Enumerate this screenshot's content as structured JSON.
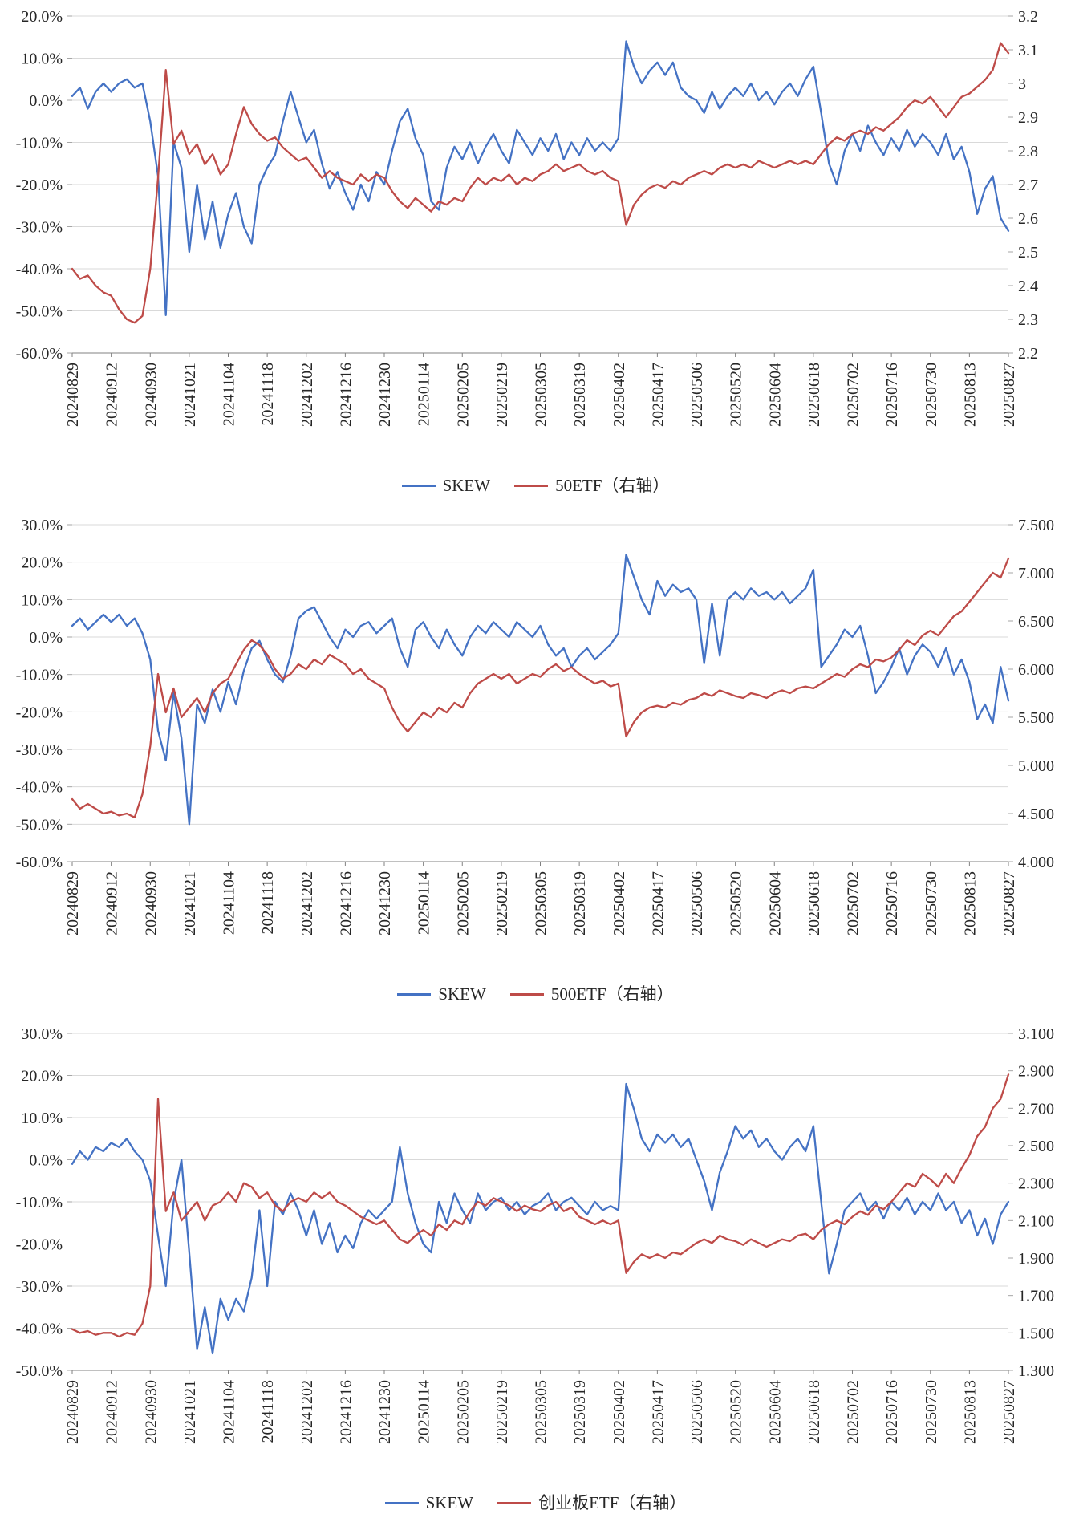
{
  "colors": {
    "skew": "#4472C4",
    "etf": "#BE4B48",
    "grid": "#D9D9D9",
    "axis": "#808080",
    "tick": "#A6A6A6",
    "text": "#262626"
  },
  "x_labels": [
    "20240829",
    "20240912",
    "20240930",
    "20241021",
    "20241104",
    "20241118",
    "20241202",
    "20241216",
    "20241230",
    "20250114",
    "20250205",
    "20250219",
    "20250305",
    "20250319",
    "20250402",
    "20250417",
    "20250506",
    "20250520",
    "20250604",
    "20250618",
    "20250702",
    "20250716",
    "20250730",
    "20250813",
    "20250827"
  ],
  "chart_data": [
    {
      "type": "line",
      "name": "skew-vs-50etf",
      "legend": [
        "SKEW",
        "50ETF（右轴）"
      ],
      "x_tick_every": 5,
      "left_axis": {
        "max": 20,
        "min": -60,
        "format": "percent",
        "labels": [
          "20.0%",
          "10.0%",
          "0.0%",
          "-10.0%",
          "-20.0%",
          "-30.0%",
          "-40.0%",
          "-50.0%",
          "-60.0%"
        ]
      },
      "right_axis": {
        "max": 3.2,
        "min": 2.2,
        "labels": [
          "3.2",
          "3.1",
          "3",
          "2.9",
          "2.8",
          "2.7",
          "2.6",
          "2.5",
          "2.4",
          "2.3",
          "2.2"
        ]
      },
      "series": [
        {
          "name": "SKEW",
          "axis": "left",
          "color_key": "skew",
          "unit": "percent",
          "values": [
            1,
            3,
            -2,
            2,
            4,
            2,
            4,
            5,
            3,
            4,
            -5,
            -18,
            -51,
            -10,
            -16,
            -36,
            -20,
            -33,
            -24,
            -35,
            -27,
            -22,
            -30,
            -34,
            -20,
            -16,
            -13,
            -5,
            2,
            -4,
            -10,
            -7,
            -15,
            -21,
            -17,
            -22,
            -26,
            -20,
            -24,
            -17,
            -20,
            -12,
            -5,
            -2,
            -9,
            -13,
            -24,
            -26,
            -16,
            -11,
            -14,
            -10,
            -15,
            -11,
            -8,
            -12,
            -15,
            -7,
            -10,
            -13,
            -9,
            -12,
            -8,
            -14,
            -10,
            -13,
            -9,
            -12,
            -10,
            -12,
            -9,
            14,
            8,
            4,
            7,
            9,
            6,
            9,
            3,
            1,
            0,
            -3,
            2,
            -2,
            1,
            3,
            1,
            4,
            0,
            2,
            -1,
            2,
            4,
            1,
            5,
            8,
            -3,
            -15,
            -20,
            -12,
            -8,
            -12,
            -6,
            -10,
            -13,
            -9,
            -12,
            -7,
            -11,
            -8,
            -10,
            -13,
            -8,
            -14,
            -11,
            -17,
            -27,
            -21,
            -18,
            -28,
            -31
          ]
        },
        {
          "name": "50ETF（右轴）",
          "axis": "right",
          "color_key": "etf",
          "values": [
            2.45,
            2.42,
            2.43,
            2.4,
            2.38,
            2.37,
            2.33,
            2.3,
            2.29,
            2.31,
            2.45,
            2.72,
            3.04,
            2.82,
            2.86,
            2.79,
            2.82,
            2.76,
            2.79,
            2.73,
            2.76,
            2.85,
            2.93,
            2.88,
            2.85,
            2.83,
            2.84,
            2.81,
            2.79,
            2.77,
            2.78,
            2.75,
            2.72,
            2.74,
            2.72,
            2.71,
            2.7,
            2.73,
            2.71,
            2.73,
            2.72,
            2.68,
            2.65,
            2.63,
            2.66,
            2.64,
            2.62,
            2.65,
            2.64,
            2.66,
            2.65,
            2.69,
            2.72,
            2.7,
            2.72,
            2.71,
            2.73,
            2.7,
            2.72,
            2.71,
            2.73,
            2.74,
            2.76,
            2.74,
            2.75,
            2.76,
            2.74,
            2.73,
            2.74,
            2.72,
            2.71,
            2.58,
            2.64,
            2.67,
            2.69,
            2.7,
            2.69,
            2.71,
            2.7,
            2.72,
            2.73,
            2.74,
            2.73,
            2.75,
            2.76,
            2.75,
            2.76,
            2.75,
            2.77,
            2.76,
            2.75,
            2.76,
            2.77,
            2.76,
            2.77,
            2.76,
            2.79,
            2.82,
            2.84,
            2.83,
            2.85,
            2.86,
            2.85,
            2.87,
            2.86,
            2.88,
            2.9,
            2.93,
            2.95,
            2.94,
            2.96,
            2.93,
            2.9,
            2.93,
            2.96,
            2.97,
            2.99,
            3.01,
            3.04,
            3.12,
            3.09
          ]
        }
      ]
    },
    {
      "type": "line",
      "name": "skew-vs-500etf",
      "legend": [
        "SKEW",
        "500ETF（右轴）"
      ],
      "x_tick_every": 5,
      "left_axis": {
        "max": 30,
        "min": -60,
        "format": "percent",
        "labels": [
          "30.0%",
          "20.0%",
          "10.0%",
          "0.0%",
          "-10.0%",
          "-20.0%",
          "-30.0%",
          "-40.0%",
          "-50.0%",
          "-60.0%"
        ]
      },
      "right_axis": {
        "max": 7.5,
        "min": 4.0,
        "labels": [
          "7.500",
          "7.000",
          "6.500",
          "6.000",
          "5.500",
          "5.000",
          "4.500",
          "4.000"
        ]
      },
      "series": [
        {
          "name": "SKEW",
          "axis": "left",
          "color_key": "skew",
          "unit": "percent",
          "values": [
            3,
            5,
            2,
            4,
            6,
            4,
            6,
            3,
            5,
            1,
            -6,
            -25,
            -33,
            -15,
            -27,
            -50,
            -18,
            -23,
            -14,
            -20,
            -12,
            -18,
            -9,
            -3,
            -1,
            -6,
            -10,
            -12,
            -5,
            5,
            7,
            8,
            4,
            0,
            -3,
            2,
            0,
            3,
            4,
            1,
            3,
            5,
            -3,
            -8,
            2,
            4,
            0,
            -3,
            2,
            -2,
            -5,
            0,
            3,
            1,
            4,
            2,
            0,
            4,
            2,
            0,
            3,
            -2,
            -5,
            -3,
            -8,
            -5,
            -3,
            -6,
            -4,
            -2,
            1,
            22,
            16,
            10,
            6,
            15,
            11,
            14,
            12,
            13,
            10,
            -7,
            9,
            -5,
            10,
            12,
            10,
            13,
            11,
            12,
            10,
            12,
            9,
            11,
            13,
            18,
            -8,
            -5,
            -2,
            2,
            0,
            3,
            -5,
            -15,
            -12,
            -8,
            -3,
            -10,
            -5,
            -2,
            -4,
            -8,
            -3,
            -10,
            -6,
            -12,
            -22,
            -18,
            -23,
            -8,
            -17
          ]
        },
        {
          "name": "500ETF（右轴）",
          "axis": "right",
          "color_key": "etf",
          "values": [
            4.65,
            4.55,
            4.6,
            4.55,
            4.5,
            4.52,
            4.48,
            4.5,
            4.46,
            4.7,
            5.2,
            5.95,
            5.55,
            5.8,
            5.5,
            5.6,
            5.7,
            5.55,
            5.75,
            5.85,
            5.9,
            6.05,
            6.2,
            6.3,
            6.25,
            6.15,
            6.0,
            5.9,
            5.95,
            6.05,
            6.0,
            6.1,
            6.05,
            6.15,
            6.1,
            6.05,
            5.95,
            6.0,
            5.9,
            5.85,
            5.8,
            5.6,
            5.45,
            5.35,
            5.45,
            5.55,
            5.5,
            5.6,
            5.55,
            5.65,
            5.6,
            5.75,
            5.85,
            5.9,
            5.95,
            5.9,
            5.95,
            5.85,
            5.9,
            5.95,
            5.92,
            6.0,
            6.05,
            5.98,
            6.02,
            5.95,
            5.9,
            5.85,
            5.88,
            5.82,
            5.85,
            5.3,
            5.45,
            5.55,
            5.6,
            5.62,
            5.6,
            5.65,
            5.63,
            5.68,
            5.7,
            5.75,
            5.72,
            5.78,
            5.75,
            5.72,
            5.7,
            5.75,
            5.73,
            5.7,
            5.75,
            5.78,
            5.75,
            5.8,
            5.82,
            5.8,
            5.85,
            5.9,
            5.95,
            5.92,
            6.0,
            6.05,
            6.02,
            6.1,
            6.08,
            6.12,
            6.2,
            6.3,
            6.25,
            6.35,
            6.4,
            6.35,
            6.45,
            6.55,
            6.6,
            6.7,
            6.8,
            6.9,
            7.0,
            6.95,
            7.15
          ]
        }
      ]
    },
    {
      "type": "line",
      "name": "skew-vs-chinext-etf",
      "legend": [
        "SKEW",
        "创业板ETF（右轴）"
      ],
      "x_tick_every": 5,
      "left_axis": {
        "max": 30,
        "min": -50,
        "format": "percent",
        "labels": [
          "30.0%",
          "20.0%",
          "10.0%",
          "0.0%",
          "-10.0%",
          "-20.0%",
          "-30.0%",
          "-40.0%",
          "-50.0%"
        ]
      },
      "right_axis": {
        "max": 3.1,
        "min": 1.3,
        "labels": [
          "3.100",
          "2.900",
          "2.700",
          "2.500",
          "2.300",
          "2.100",
          "1.900",
          "1.700",
          "1.500",
          "1.300"
        ]
      },
      "series": [
        {
          "name": "SKEW",
          "axis": "left",
          "color_key": "skew",
          "unit": "percent",
          "values": [
            -1,
            2,
            0,
            3,
            2,
            4,
            3,
            5,
            2,
            0,
            -5,
            -18,
            -30,
            -10,
            0,
            -22,
            -45,
            -35,
            -46,
            -33,
            -38,
            -33,
            -36,
            -28,
            -12,
            -30,
            -10,
            -13,
            -8,
            -12,
            -18,
            -12,
            -20,
            -15,
            -22,
            -18,
            -21,
            -15,
            -12,
            -14,
            -12,
            -10,
            3,
            -8,
            -15,
            -20,
            -22,
            -10,
            -15,
            -8,
            -12,
            -15,
            -8,
            -12,
            -10,
            -9,
            -12,
            -10,
            -13,
            -11,
            -10,
            -8,
            -12,
            -10,
            -9,
            -11,
            -13,
            -10,
            -12,
            -11,
            -12,
            18,
            12,
            5,
            2,
            6,
            4,
            6,
            3,
            5,
            0,
            -5,
            -12,
            -3,
            2,
            8,
            5,
            7,
            3,
            5,
            2,
            0,
            3,
            5,
            2,
            8,
            -10,
            -27,
            -20,
            -12,
            -10,
            -8,
            -12,
            -10,
            -14,
            -10,
            -12,
            -9,
            -13,
            -10,
            -12,
            -8,
            -12,
            -10,
            -15,
            -12,
            -18,
            -14,
            -20,
            -13,
            -10
          ]
        },
        {
          "name": "创业板ETF（右轴）",
          "axis": "right",
          "color_key": "etf",
          "values": [
            1.52,
            1.5,
            1.51,
            1.49,
            1.5,
            1.5,
            1.48,
            1.5,
            1.49,
            1.55,
            1.75,
            2.75,
            2.15,
            2.25,
            2.1,
            2.15,
            2.2,
            2.1,
            2.18,
            2.2,
            2.25,
            2.2,
            2.3,
            2.28,
            2.22,
            2.25,
            2.18,
            2.15,
            2.2,
            2.22,
            2.2,
            2.25,
            2.22,
            2.25,
            2.2,
            2.18,
            2.15,
            2.12,
            2.1,
            2.08,
            2.1,
            2.05,
            2.0,
            1.98,
            2.02,
            2.05,
            2.02,
            2.08,
            2.05,
            2.1,
            2.08,
            2.15,
            2.2,
            2.18,
            2.22,
            2.2,
            2.18,
            2.15,
            2.18,
            2.16,
            2.15,
            2.18,
            2.2,
            2.15,
            2.17,
            2.12,
            2.1,
            2.08,
            2.1,
            2.08,
            2.1,
            1.82,
            1.88,
            1.92,
            1.9,
            1.92,
            1.9,
            1.93,
            1.92,
            1.95,
            1.98,
            2.0,
            1.98,
            2.02,
            2.0,
            1.99,
            1.97,
            2.0,
            1.98,
            1.96,
            1.98,
            2.0,
            1.99,
            2.02,
            2.03,
            2.0,
            2.05,
            2.08,
            2.1,
            2.08,
            2.12,
            2.15,
            2.13,
            2.18,
            2.16,
            2.2,
            2.25,
            2.3,
            2.28,
            2.35,
            2.32,
            2.28,
            2.35,
            2.3,
            2.38,
            2.45,
            2.55,
            2.6,
            2.7,
            2.75,
            2.88
          ]
        }
      ]
    }
  ]
}
